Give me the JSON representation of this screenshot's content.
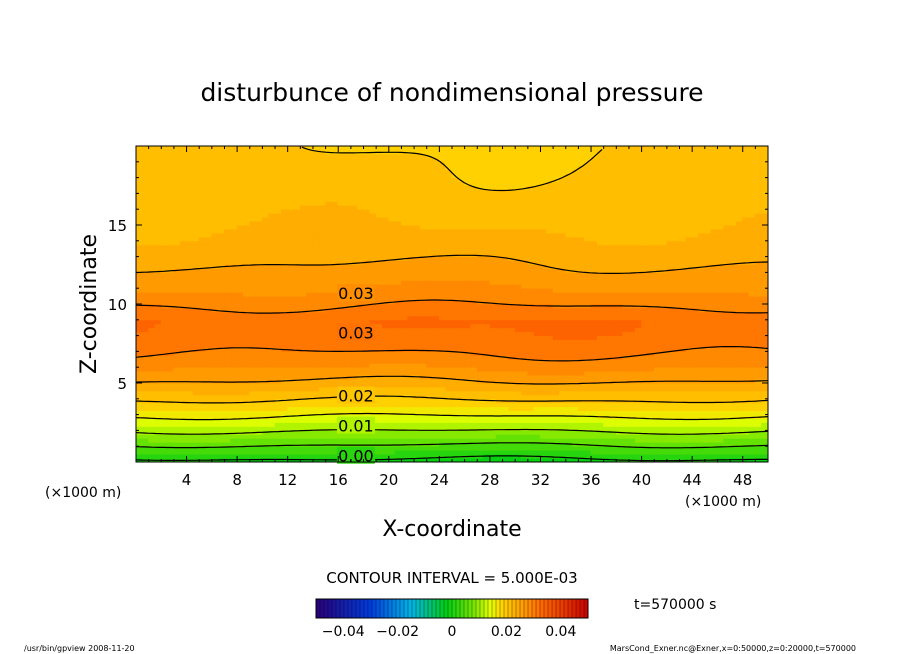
{
  "chart_data": {
    "type": "heatmap",
    "title": "disturbunce of nondimensional pressure",
    "xlabel": "X-coordinate",
    "ylabel": "Z-coordinate",
    "x_unit": "(×1000 m)",
    "y_unit": "(×1000 m)",
    "xlim": [
      0,
      50
    ],
    "ylim": [
      0,
      20
    ],
    "x_ticks": [
      4,
      8,
      12,
      16,
      20,
      24,
      28,
      32,
      36,
      40,
      44,
      48
    ],
    "y_ticks": [
      5,
      10,
      15
    ],
    "contour_interval_label": "CONTOUR INTERVAL = 5.000E-03",
    "contour_labels": [
      {
        "text": "0.03",
        "x": 17.4,
        "z": 10.7
      },
      {
        "text": "0.03",
        "x": 17.4,
        "z": 8.2
      },
      {
        "text": "0.02",
        "x": 17.4,
        "z": 4.2
      },
      {
        "text": "0.01",
        "x": 17.4,
        "z": 2.3
      },
      {
        "text": "0.00",
        "x": 17.4,
        "z": 0.4
      }
    ],
    "colorbar": {
      "min": -0.05,
      "max": 0.05,
      "tick_labels": [
        "−0.04",
        "−0.02",
        "0",
        "0.02",
        "0.04"
      ],
      "tick_values": [
        -0.04,
        -0.02,
        0,
        0.02,
        0.04
      ]
    },
    "time_label": "t=570000  s"
  },
  "footer": {
    "left": "/usr/bin/gpview   2008-11-20",
    "right": "MarsCond_Exner.nc@Exner,x=0:50000,z=0:20000,t=570000"
  }
}
